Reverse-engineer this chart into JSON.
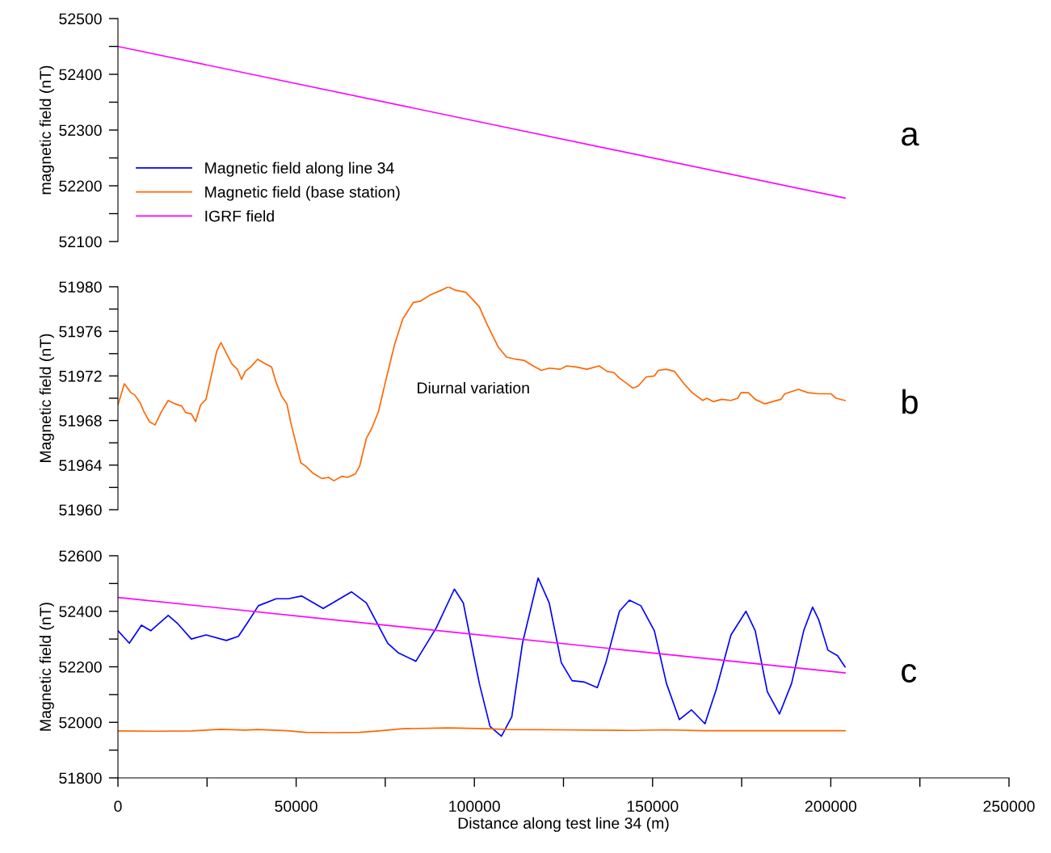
{
  "chart_data": [
    {
      "type": "line",
      "title": "a",
      "ylabel": "magnetic field (nT)",
      "tick_labels": "y",
      "grid": false,
      "xlim": [
        0,
        250000
      ],
      "ylim": [
        52100,
        52500
      ],
      "yticks": [
        52100,
        {
          "value": 52150,
          "label": null
        },
        52200,
        {
          "value": 52250,
          "label": null
        },
        52300,
        {
          "value": 52350,
          "label": null
        },
        52400,
        {
          "value": 52450,
          "label": null
        },
        52500
      ],
      "series": [
        {
          "color": "#ff00ff",
          "x": [
            0,
            204000
          ],
          "values": [
            52450,
            52178
          ]
        }
      ]
    },
    {
      "type": "line",
      "title": "b",
      "ylabel": "Magnetic field (nT)",
      "tick_labels": "y",
      "grid": false,
      "xlim": [
        0,
        250000
      ],
      "ylim": [
        51960,
        51980
      ],
      "yticks": [
        51960,
        {
          "value": 51962,
          "label": null
        },
        51964,
        {
          "value": 51966,
          "label": null
        },
        51968,
        {
          "value": 51970,
          "label": null
        },
        51972,
        {
          "value": 51974,
          "label": null
        },
        51976,
        {
          "value": 51978,
          "label": null
        },
        51980
      ],
      "annotations": [
        "Diurnal variation"
      ],
      "series": [
        {
          "color": "#ff6600",
          "x": [
            0,
            1800,
            3600,
            4700,
            6200,
            7300,
            8800,
            10400,
            12200,
            14100,
            16000,
            17900,
            19000,
            20600,
            21800,
            23200,
            24700,
            26600,
            27700,
            28900,
            30000,
            31900,
            33500,
            34700,
            35700,
            37200,
            39200,
            41300,
            43100,
            44400,
            45900,
            47400,
            48500,
            50000,
            51300,
            52700,
            54600,
            57200,
            59100,
            60600,
            62900,
            64400,
            66600,
            67800,
            69700,
            71200,
            73100,
            75000,
            77600,
            79900,
            82900,
            84800,
            87800,
            90800,
            92700,
            94600,
            97600,
            99100,
            101400,
            103600,
            106700,
            109000,
            111600,
            113900,
            116500,
            118800,
            121000,
            124100,
            125900,
            128600,
            131600,
            135000,
            137300,
            139200,
            140700,
            142900,
            144500,
            146000,
            148200,
            150500,
            151600,
            153900,
            156200,
            158800,
            161100,
            164100,
            165200,
            167100,
            169400,
            172000,
            173900,
            174800,
            176900,
            178800,
            181500,
            183700,
            186000,
            187100,
            190900,
            193600,
            196600,
            200000,
            201500,
            204000
          ],
          "values": [
            51969.4,
            51971.3,
            51970.5,
            51970.3,
            51969.6,
            51968.8,
            51967.9,
            51967.6,
            51968.8,
            51969.8,
            51969.5,
            51969.3,
            51968.7,
            51968.6,
            51967.9,
            51969.4,
            51969.9,
            51972.6,
            51974.2,
            51975.0,
            51974.3,
            51973.1,
            51972.6,
            51971.7,
            51972.4,
            51972.8,
            51973.5,
            51973.1,
            51972.8,
            51971.4,
            51970.2,
            51969.5,
            51967.8,
            51965.9,
            51964.2,
            51963.9,
            51963.3,
            51962.8,
            51962.9,
            51962.6,
            51963.0,
            51962.9,
            51963.2,
            51963.9,
            51966.4,
            51967.3,
            51968.8,
            51971.4,
            51974.8,
            51977.1,
            51978.6,
            51978.7,
            51979.3,
            51979.7,
            51980.0,
            51979.7,
            51979.5,
            51979.0,
            51978.2,
            51976.6,
            51974.6,
            51973.7,
            51973.5,
            51973.4,
            51972.9,
            51972.5,
            51972.7,
            51972.6,
            51972.9,
            51972.8,
            51972.6,
            51972.9,
            51972.4,
            51972.3,
            51971.8,
            51971.3,
            51970.9,
            51971.1,
            51971.9,
            51972.0,
            51972.5,
            51972.6,
            51972.4,
            51971.3,
            51970.5,
            51969.8,
            51970.0,
            51969.7,
            51969.9,
            51969.8,
            51970.0,
            51970.5,
            51970.5,
            51969.9,
            51969.5,
            51969.7,
            51969.9,
            51970.4,
            51970.8,
            51970.5,
            51970.4,
            51970.4,
            51970.0,
            51969.8
          ]
        }
      ]
    },
    {
      "type": "line",
      "title": "c",
      "ylabel": "Magnetic field (nT)",
      "xlabel": "Distance along test line 34 (m)",
      "grid": false,
      "legend": "top left",
      "xlim": [
        0,
        250000
      ],
      "ylim": [
        51800,
        52600
      ],
      "xticks": [
        0,
        {
          "value": 25000,
          "label": null
        },
        50000,
        {
          "value": 75000,
          "label": null
        },
        100000,
        {
          "value": 125000,
          "label": null
        },
        150000,
        {
          "value": 175000,
          "label": null
        },
        200000,
        {
          "value": 225000,
          "label": null
        },
        250000
      ],
      "yticks": [
        51800,
        {
          "value": 51900,
          "label": null
        },
        52000,
        {
          "value": 52100,
          "label": null
        },
        52200,
        {
          "value": 52300,
          "label": null
        },
        52400,
        {
          "value": 52500,
          "label": null
        },
        52600
      ],
      "series": [
        {
          "name": "Magnetic field along line 34",
          "color": "#0000ff",
          "x": [
            0,
            3200,
            6600,
            9200,
            14100,
            16800,
            20600,
            24700,
            30400,
            33800,
            36400,
            39400,
            44400,
            47800,
            51500,
            57600,
            65500,
            69700,
            75700,
            78700,
            83600,
            89300,
            94400,
            96900,
            99900,
            101400,
            104400,
            107600,
            110500,
            113500,
            117900,
            121000,
            124400,
            127400,
            130900,
            134500,
            136900,
            140700,
            143500,
            146700,
            150500,
            153900,
            157500,
            160900,
            164700,
            167900,
            172000,
            176200,
            178800,
            182200,
            185600,
            189000,
            192400,
            194900,
            196600,
            199200,
            201900,
            204000
          ],
          "values": [
            52330,
            52285,
            52350,
            52330,
            52385,
            52355,
            52300,
            52315,
            52295,
            52310,
            52360,
            52420,
            52445,
            52445,
            52455,
            52410,
            52470,
            52430,
            52285,
            52250,
            52220,
            52340,
            52480,
            52430,
            52235,
            52140,
            51985,
            51950,
            52020,
            52285,
            52520,
            52430,
            52215,
            52150,
            52145,
            52125,
            52215,
            52400,
            52440,
            52420,
            52330,
            52140,
            52010,
            52045,
            51995,
            52120,
            52315,
            52400,
            52330,
            52110,
            52030,
            52140,
            52330,
            52415,
            52370,
            52260,
            52240,
            52200
          ]
        },
        {
          "name": "Magnetic field (base station)",
          "color": "#ff6600",
          "x": [
            0,
            10400,
            20600,
            28900,
            35700,
            39200,
            47400,
            52700,
            60600,
            67800,
            73100,
            79900,
            92700,
            103600,
            109000,
            124100,
            144500,
            153900,
            164100,
            187100,
            204000
          ],
          "values": [
            51969,
            51968,
            51969,
            51975,
            51972,
            51974,
            51970,
            51964,
            51963,
            51964,
            51969,
            51977,
            51980,
            51977,
            51974,
            51973,
            51971,
            51973,
            51970,
            51970,
            51970
          ]
        },
        {
          "name": "IGRF field",
          "color": "#ff00ff",
          "x": [
            0,
            204000
          ],
          "values": [
            52450,
            52178
          ]
        }
      ]
    }
  ]
}
